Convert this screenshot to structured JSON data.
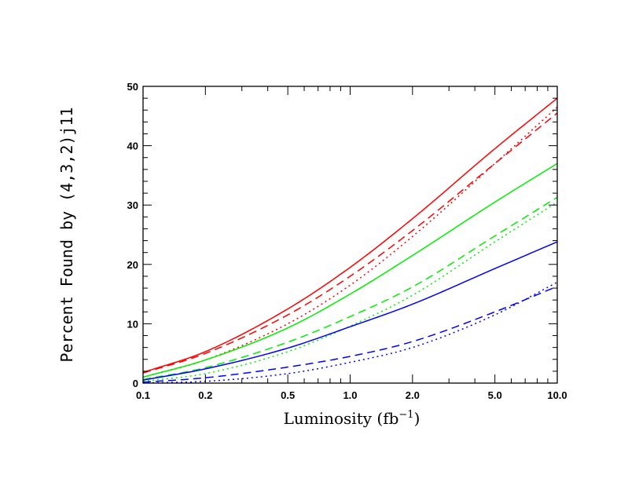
{
  "chart_data": {
    "type": "line",
    "title": "",
    "xlabel": "Luminosity (fb",
    "xlabel_sup": "−1",
    "xlabel_close": ")",
    "ylabel": "Percent Found by (4,3,2)j11",
    "xscale": "log",
    "xlim": [
      0.1,
      10.0
    ],
    "ylim": [
      0,
      50
    ],
    "x_tick_labels": [
      "0.1",
      "0.2",
      "0.5",
      "1.0",
      "2.0",
      "5.0",
      "10.0"
    ],
    "y_tick_labels": [
      "0",
      "10",
      "20",
      "30",
      "40",
      "50"
    ],
    "grid": false,
    "legend": "none",
    "x": [
      0.1,
      0.2,
      0.5,
      1.0,
      2.0,
      5.0,
      10.0
    ],
    "series": [
      {
        "color": "#ff0000",
        "style": "solid",
        "values": [
          1.8,
          5.3,
          12.5,
          19.5,
          27.7,
          39.5,
          48.0
        ]
      },
      {
        "color": "#ff0000",
        "style": "dashed",
        "values": [
          1.7,
          5.0,
          11.5,
          18.0,
          25.7,
          37.0,
          45.5
        ]
      },
      {
        "color": "#ff0000",
        "style": "dotted",
        "values": [
          1.0,
          3.9,
          10.0,
          16.5,
          24.7,
          37.0,
          46.5
        ]
      },
      {
        "color": "#00ee00",
        "style": "solid",
        "values": [
          1.0,
          3.9,
          9.3,
          15.0,
          21.5,
          30.5,
          37.0
        ]
      },
      {
        "color": "#00ee00",
        "style": "dashed",
        "values": [
          0.6,
          2.6,
          6.9,
          11.2,
          16.2,
          24.8,
          31.3
        ]
      },
      {
        "color": "#00ee00",
        "style": "dotted",
        "values": [
          0.3,
          1.6,
          5.3,
          9.6,
          14.8,
          23.8,
          30.5
        ]
      },
      {
        "color": "#0000ff",
        "style": "solid",
        "values": [
          0.5,
          2.4,
          5.9,
          9.5,
          13.3,
          19.3,
          23.8
        ]
      },
      {
        "color": "#0000ff",
        "style": "dashed",
        "values": [
          0.15,
          0.9,
          2.7,
          4.5,
          7.0,
          12.0,
          16.3
        ]
      },
      {
        "color": "#0000ff",
        "style": "dotted",
        "values": [
          0.02,
          0.3,
          1.6,
          3.5,
          6.0,
          11.5,
          17.0
        ]
      }
    ]
  }
}
